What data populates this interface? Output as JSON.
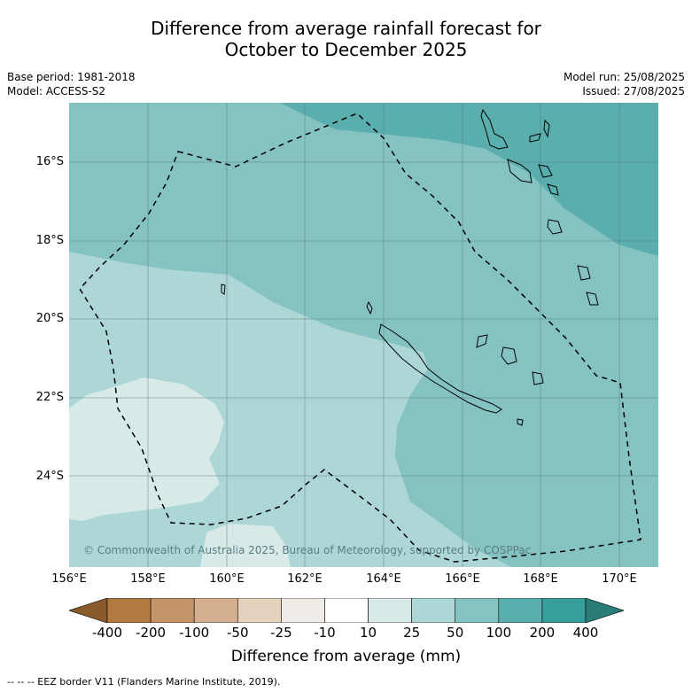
{
  "title_line1": "Difference from average rainfall forecast for",
  "title_line2": "October to December 2025",
  "base_period": "Base period: 1981-2018",
  "model": "Model: ACCESS-S2",
  "model_run": "Model run: 25/08/2025",
  "issued": "Issued: 27/08/2025",
  "y_ticks": [
    "16°S",
    "18°S",
    "20°S",
    "22°S",
    "24°S"
  ],
  "x_ticks": [
    "156°E",
    "158°E",
    "160°E",
    "162°E",
    "164°E",
    "166°E",
    "168°E",
    "170°E"
  ],
  "copyright": "© Commonwealth of Australia 2025, Bureau of Meteorology, supported by COSPPac",
  "colorbar": {
    "ticks": [
      "-400",
      "-200",
      "-100",
      "-50",
      "-25",
      "-10",
      "10",
      "25",
      "50",
      "100",
      "200",
      "400"
    ],
    "colors": [
      "#8a5a2b",
      "#b07a40",
      "#c4956a",
      "#d5b090",
      "#e6d2bc",
      "#efebe7",
      "#ffffff",
      "#d7eae8",
      "#add7d6",
      "#85c3c2",
      "#5aaeae",
      "#389e9a",
      "#2a7c78"
    ],
    "label": "Difference from average (mm)"
  },
  "footnote": "--  --  -- EEZ border V11 (Flanders Marine Institute, 2019)."
}
